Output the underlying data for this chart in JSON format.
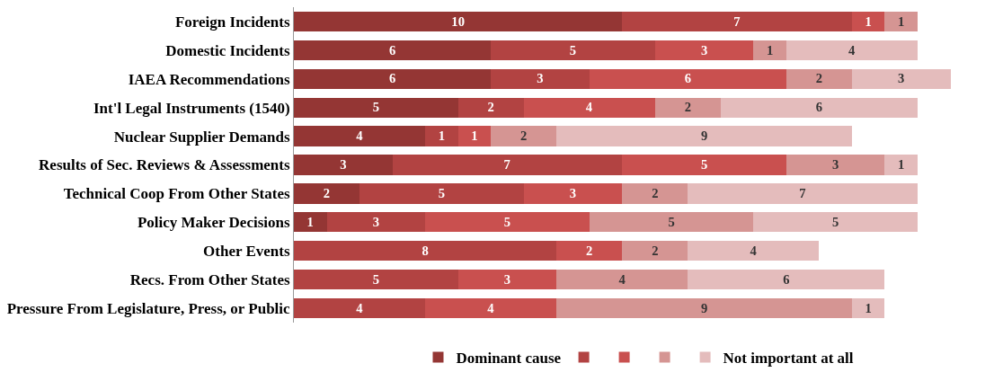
{
  "chart_data": {
    "type": "bar",
    "orientation": "horizontal",
    "stacked": true,
    "data_labels": true,
    "legend": "bottom",
    "categories": [
      "Foreign Incidents",
      "Domestic Incidents",
      "IAEA Recommendations",
      "Int'l Legal Instruments (1540)",
      "Nuclear Supplier Demands",
      "Results of Sec. Reviews & Assessments",
      "Technical Coop From Other States",
      "Policy Maker Decisions",
      "Other Events",
      "Recs. From Other States",
      "Pressure From Legislature, Press, or Public"
    ],
    "series": [
      {
        "name": "Dominant cause",
        "color": "#943634",
        "values": [
          10,
          6,
          6,
          5,
          4,
          3,
          2,
          1,
          null,
          null,
          null
        ]
      },
      {
        "color": "#b24342",
        "values": [
          7,
          5,
          3,
          2,
          1,
          7,
          5,
          3,
          8,
          5,
          4
        ]
      },
      {
        "color": "#c9504f",
        "values": [
          1,
          3,
          6,
          4,
          1,
          5,
          3,
          5,
          2,
          3,
          4
        ]
      },
      {
        "color": "#d59593",
        "values": [
          1,
          1,
          2,
          2,
          2,
          3,
          2,
          5,
          2,
          4,
          9
        ]
      },
      {
        "name": "Not important at all",
        "color": "#e4bcbc",
        "values": [
          null,
          4,
          3,
          6,
          9,
          1,
          7,
          5,
          4,
          6,
          1
        ]
      }
    ]
  }
}
